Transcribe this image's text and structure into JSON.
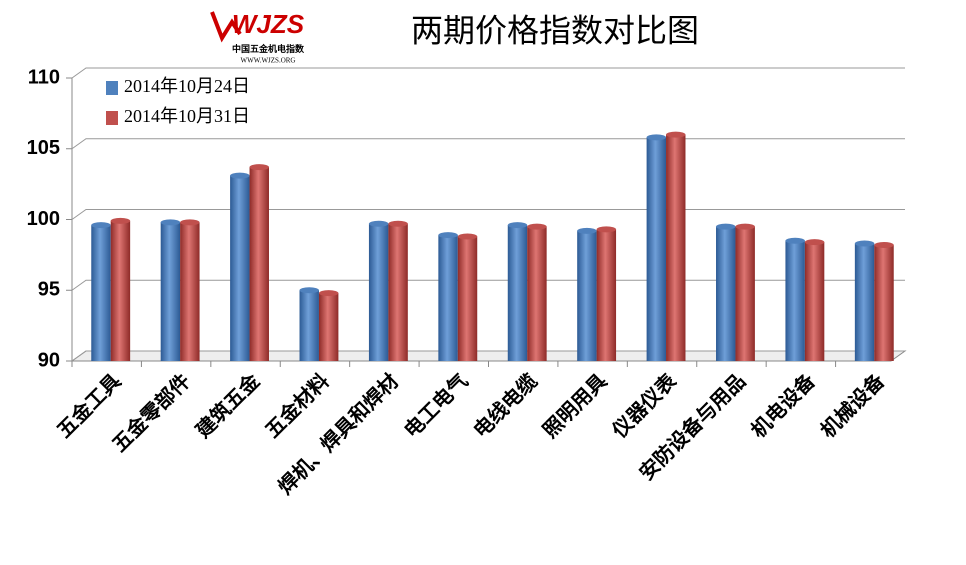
{
  "logo": {
    "name": "WJZS",
    "subtitle": "中国五金机电指数",
    "url": "WWW.WJZS.ORG"
  },
  "chart_data": {
    "type": "bar",
    "title": "两期价格指数对比图",
    "categories": [
      "五金工具",
      "五金零部件",
      "建筑五金",
      "五金材料",
      "焊机、焊具和焊材",
      "电工电气",
      "电线电缆",
      "照明用具",
      "仪器仪表",
      "安防设备与用品",
      "机电设备",
      "机械设备"
    ],
    "series": [
      {
        "name": "2014年10月24日",
        "color": "#4f81bd",
        "values": [
          99.6,
          99.8,
          103.1,
          95.0,
          99.7,
          98.9,
          99.6,
          99.2,
          105.8,
          99.5,
          98.5,
          98.3
        ]
      },
      {
        "name": "2014年10月31日",
        "color": "#c0504d",
        "values": [
          99.9,
          99.8,
          103.7,
          94.8,
          99.7,
          98.8,
          99.5,
          99.3,
          106.0,
          99.5,
          98.4,
          98.2
        ]
      }
    ],
    "ylim": [
      90,
      110
    ],
    "yticks": [
      90,
      95,
      100,
      105,
      110
    ],
    "grid": true,
    "legend": "top-left"
  }
}
